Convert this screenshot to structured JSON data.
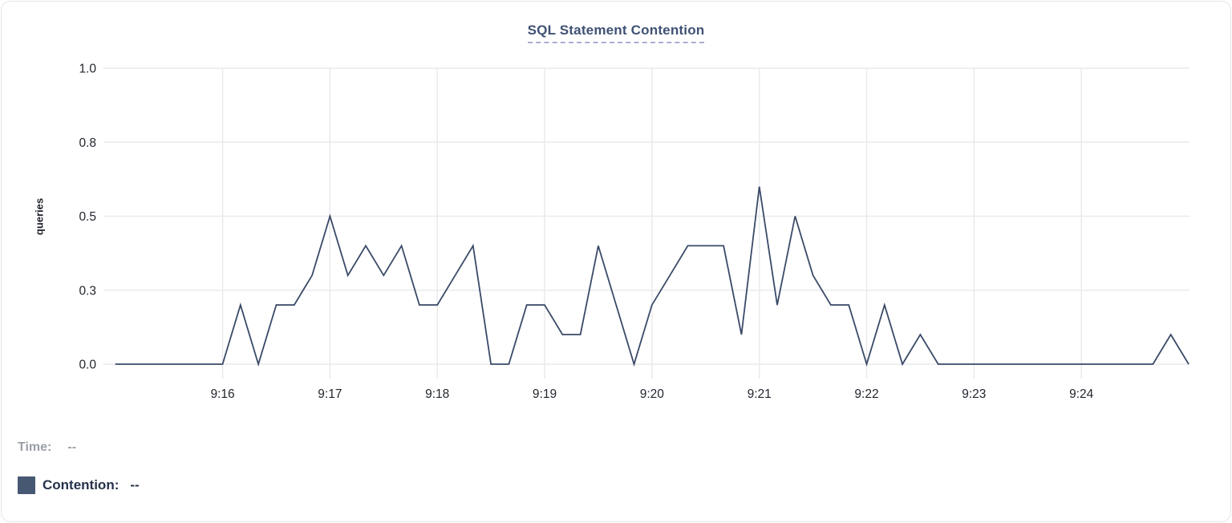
{
  "header": {
    "title": "SQL Statement Contention"
  },
  "colors": {
    "line": "#3a4a68",
    "swatch": "#475872",
    "title": "#3f5174",
    "grid": "#e9eaec",
    "axis_text": "#22262e"
  },
  "legend": {
    "time_label": "Time:",
    "time_value": "--",
    "series_label": "Contention:",
    "series_value": "--"
  },
  "chart_data": {
    "type": "line",
    "title": "SQL Statement Contention",
    "xlabel": "",
    "ylabel": "queries",
    "ylim": [
      0,
      1.0
    ],
    "grid": true,
    "y_ticks": [
      {
        "label": "0.0",
        "value": 0
      },
      {
        "label": "0.3",
        "value": 0.25
      },
      {
        "label": "0.5",
        "value": 0.5
      },
      {
        "label": "0.8",
        "value": 0.75
      },
      {
        "label": "1.0",
        "value": 1.0
      }
    ],
    "x_ticks": [
      {
        "label": "9:16",
        "seconds": 60
      },
      {
        "label": "9:17",
        "seconds": 120
      },
      {
        "label": "9:18",
        "seconds": 180
      },
      {
        "label": "9:19",
        "seconds": 240
      },
      {
        "label": "9:20",
        "seconds": 300
      },
      {
        "label": "9:21",
        "seconds": 360
      },
      {
        "label": "9:22",
        "seconds": 420
      },
      {
        "label": "9:23",
        "seconds": 480
      },
      {
        "label": "9:24",
        "seconds": 540
      }
    ],
    "x_domain_seconds": [
      0,
      600
    ],
    "x_start_time": "9:15:00",
    "x_step_seconds": 10,
    "series": [
      {
        "name": "Contention",
        "values": [
          0,
          0,
          0,
          0,
          0,
          0,
          0,
          0.2,
          0,
          0.2,
          0.2,
          0.3,
          0.5,
          0.3,
          0.4,
          0.3,
          0.4,
          0.2,
          0.2,
          0.3,
          0.4,
          0,
          0,
          0.2,
          0.2,
          0.1,
          0.1,
          0.4,
          0.2,
          0,
          0.2,
          0.3,
          0.4,
          0.4,
          0.4,
          0.1,
          0.6,
          0.2,
          0.5,
          0.3,
          0.2,
          0.2,
          0,
          0.2,
          0,
          0.1,
          0,
          0,
          0,
          0,
          0,
          0,
          0,
          0,
          0,
          0,
          0,
          0,
          0,
          0.1,
          0
        ]
      }
    ]
  }
}
